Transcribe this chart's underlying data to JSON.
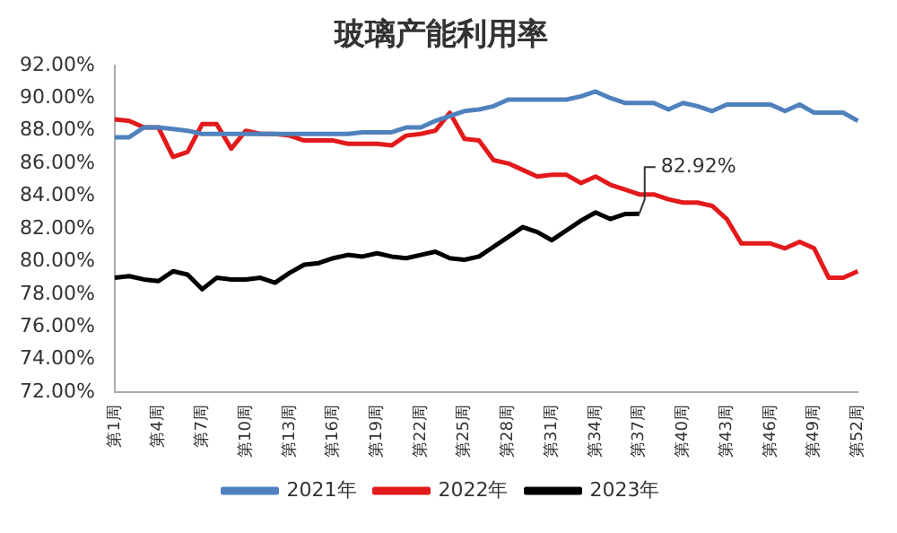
{
  "chart_data": {
    "type": "line",
    "title": "玻璃产能利用率",
    "categories": [
      "第1周",
      null,
      null,
      "第4周",
      null,
      null,
      "第7周",
      null,
      null,
      "第10周",
      null,
      null,
      "第13周",
      null,
      null,
      "第16周",
      null,
      null,
      "第19周",
      null,
      null,
      "第22周",
      null,
      null,
      "第25周",
      null,
      null,
      "第28周",
      null,
      null,
      "第31周",
      null,
      null,
      "第34周",
      null,
      null,
      "第37周",
      null,
      null,
      "第40周",
      null,
      null,
      "第43周",
      null,
      null,
      "第46周",
      null,
      null,
      "第49周",
      null,
      null,
      "第52周"
    ],
    "series": [
      {
        "name": "2021年",
        "color": "#4f81bd",
        "values": [
          87.6,
          87.6,
          88.2,
          88.2,
          88.1,
          88.0,
          87.8,
          87.8,
          87.8,
          87.8,
          87.8,
          87.8,
          87.8,
          87.8,
          87.8,
          87.8,
          87.8,
          87.9,
          87.9,
          87.9,
          88.2,
          88.2,
          88.6,
          88.9,
          89.2,
          89.3,
          89.5,
          89.9,
          89.9,
          89.9,
          89.9,
          89.9,
          90.1,
          90.4,
          90.0,
          89.7,
          89.7,
          89.7,
          89.3,
          89.7,
          89.5,
          89.2,
          89.6,
          89.6,
          89.6,
          89.6,
          89.2,
          89.6,
          89.1,
          89.1,
          89.1,
          88.6
        ]
      },
      {
        "name": "2022年",
        "color": "#e31a1c",
        "values": [
          88.7,
          88.6,
          88.2,
          88.2,
          86.4,
          86.7,
          88.4,
          88.4,
          86.9,
          88.0,
          87.8,
          87.8,
          87.7,
          87.4,
          87.4,
          87.4,
          87.2,
          87.2,
          87.2,
          87.1,
          87.7,
          87.8,
          88.0,
          89.1,
          87.5,
          87.4,
          86.2,
          86.0,
          85.6,
          85.2,
          85.3,
          85.3,
          84.8,
          85.2,
          84.7,
          84.4,
          84.1,
          84.1,
          83.8,
          83.6,
          83.6,
          83.4,
          82.6,
          81.1,
          81.1,
          81.1,
          80.8,
          81.2,
          80.8,
          79.0,
          79.0,
          79.4
        ]
      },
      {
        "name": "2023年",
        "color": "#000000",
        "values": [
          79.0,
          79.1,
          78.9,
          78.8,
          79.4,
          79.2,
          78.3,
          79.0,
          78.9,
          78.9,
          79.0,
          78.7,
          79.3,
          79.8,
          79.9,
          80.2,
          80.4,
          80.3,
          80.5,
          80.3,
          80.2,
          80.4,
          80.6,
          80.2,
          80.1,
          80.3,
          80.9,
          81.5,
          82.1,
          81.8,
          81.3,
          81.9,
          82.5,
          83.0,
          82.6,
          82.9,
          82.92,
          null,
          null,
          null,
          null,
          null,
          null,
          null,
          null,
          null,
          null,
          null,
          null,
          null,
          null,
          null
        ]
      }
    ],
    "ylim": [
      72,
      92
    ],
    "yticks": [
      {
        "value": 72,
        "label": "72.00%"
      },
      {
        "value": 74,
        "label": "74.00%"
      },
      {
        "value": 76,
        "label": "76.00%"
      },
      {
        "value": 78,
        "label": "78.00%"
      },
      {
        "value": 80,
        "label": "80.00%"
      },
      {
        "value": 82,
        "label": "82.00%"
      },
      {
        "value": 84,
        "label": "84.00%"
      },
      {
        "value": 86,
        "label": "86.00%"
      },
      {
        "value": 88,
        "label": "88.00%"
      },
      {
        "value": 90,
        "label": "90.00%"
      },
      {
        "value": 92,
        "label": "92.00%"
      }
    ],
    "annotations": [
      {
        "text": "82.92%",
        "x": "第37周",
        "y": 82.92
      }
    ],
    "legend": "bottom",
    "marker": "none",
    "line_style": "solid",
    "grid": false
  }
}
